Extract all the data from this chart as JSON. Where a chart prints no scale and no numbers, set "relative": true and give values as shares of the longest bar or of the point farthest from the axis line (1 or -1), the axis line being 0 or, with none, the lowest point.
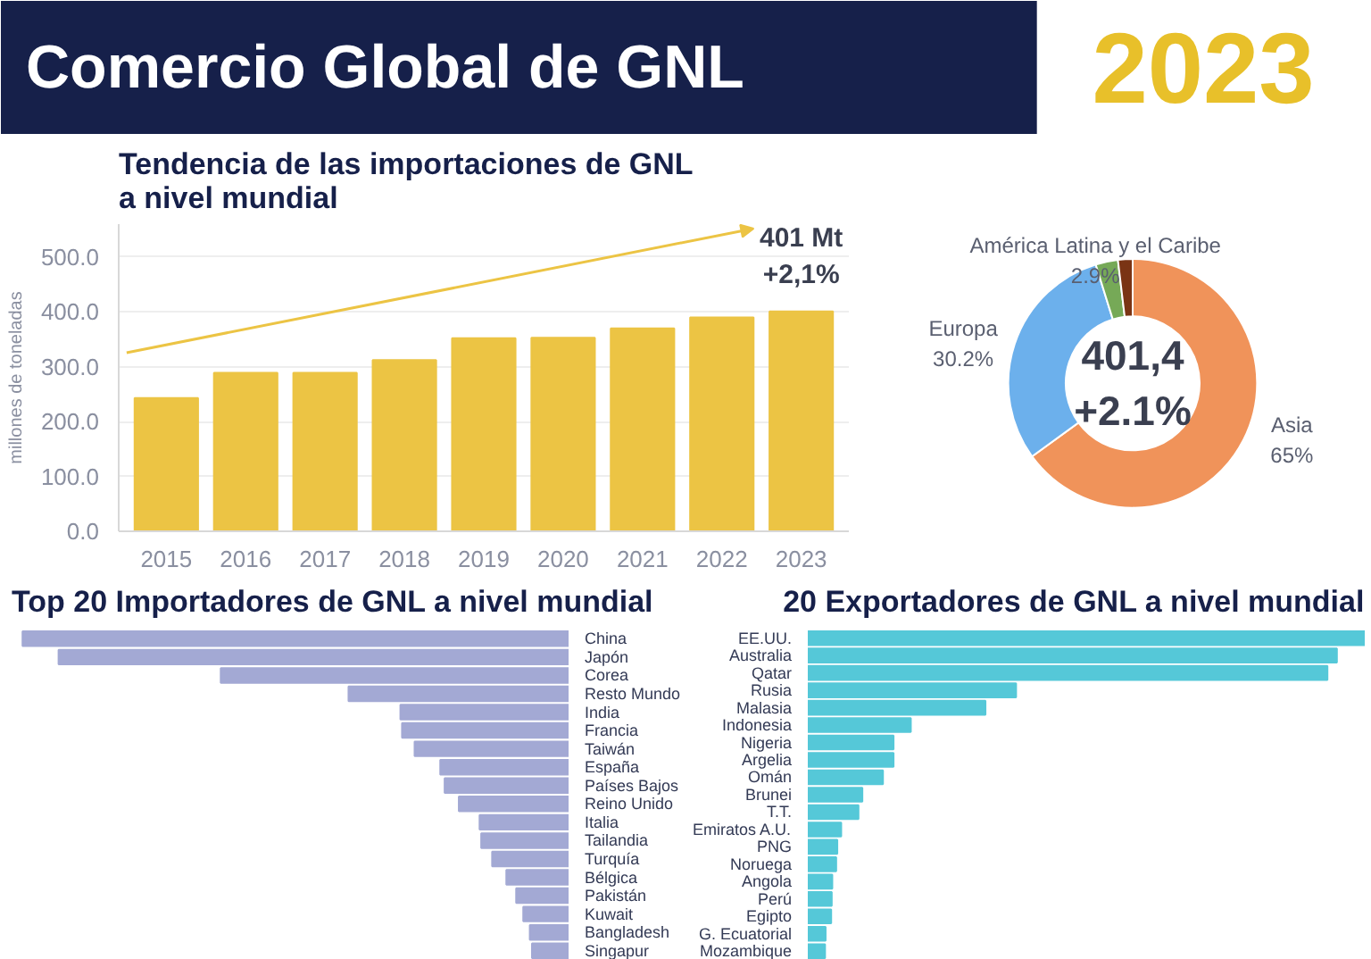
{
  "chart_data": [
    {
      "type": "other",
      "title": "Comercio Global de GNL",
      "subtitle": "2023"
    },
    {
      "type": "bar",
      "title": "Tendencia de las importaciones de GNL\na nivel mundial",
      "ylabel": "millones de toneladas",
      "categories": [
        "2015",
        "2016",
        "2017",
        "2018",
        "2019",
        "2020",
        "2021",
        "2022",
        "2023"
      ],
      "values": [
        243,
        289,
        289,
        312,
        352,
        353,
        370,
        390,
        401
      ],
      "color": "#ecc444",
      "ylim": [
        0,
        560
      ],
      "yticks": [
        {
          "value": 0,
          "label": "0.0"
        },
        {
          "value": 100,
          "label": "100.0"
        },
        {
          "value": 200,
          "label": "200.0"
        },
        {
          "value": 300,
          "label": "300.0"
        },
        {
          "value": 400,
          "label": "400.0"
        },
        {
          "value": 500,
          "label": "500.0"
        }
      ],
      "grid": "y",
      "annotations": [
        {
          "text": "401 Mt\n+2,1%",
          "x": "2023",
          "y": 401
        }
      ]
    },
    {
      "type": "donut",
      "categories": [
        "Asia",
        "Europa",
        "América Latina y el Caribe",
        null
      ],
      "values": [
        65,
        30.2,
        2.9,
        1.9
      ],
      "colors": [
        "#f0935a",
        "#6cb0ec",
        "#76a957",
        "#7a3414"
      ],
      "value_labels": [
        "65%",
        "30.2%",
        "2.9%",
        null
      ],
      "annotations": [
        "401,4\n+2.1%"
      ]
    },
    {
      "type": "bar",
      "orientation": "horizontal",
      "relative": true,
      "title": "Top 20 Importadores de GNL a nivel mundial",
      "categories": [
        "China",
        "Japón",
        "Corea",
        "Resto Mundo",
        "India",
        "Francia",
        "Taiwán",
        "España",
        "Países Bajos",
        "Reino Unido",
        "Italia",
        "Tailandia",
        "Turquía",
        "Bélgica",
        "Pakistán",
        "Kuwait",
        "Bangladesh",
        "Singapur"
      ],
      "values": [
        1,
        0.934,
        0.637,
        0.403,
        0.308,
        0.305,
        0.282,
        0.235,
        0.227,
        0.201,
        0.163,
        0.16,
        0.14,
        0.114,
        0.096,
        0.083,
        0.071,
        0.067
      ],
      "color": "#a3a9d4"
    },
    {
      "type": "bar",
      "orientation": "horizontal",
      "relative": true,
      "title": "20 Exportadores de GNL a nivel mundial",
      "categories": [
        "EE.UU.",
        "Australia",
        "Qatar",
        "Rusia",
        "Malasia",
        "Indonesia",
        "Nigeria",
        "Argelia",
        "Omán",
        "Brunei",
        "T.T.",
        "Emiratos A.U.",
        "PNG",
        "Noruega",
        "Angola",
        "Perú",
        "Egipto",
        "G. Ecuatorial",
        "Mozambique"
      ],
      "values": [
        1,
        0.95,
        0.933,
        0.374,
        0.319,
        0.185,
        0.154,
        0.154,
        0.135,
        0.098,
        0.091,
        0.06,
        0.053,
        0.051,
        0.044,
        0.043,
        0.042,
        0.032,
        0.031
      ],
      "color": "#55c8d8"
    }
  ]
}
